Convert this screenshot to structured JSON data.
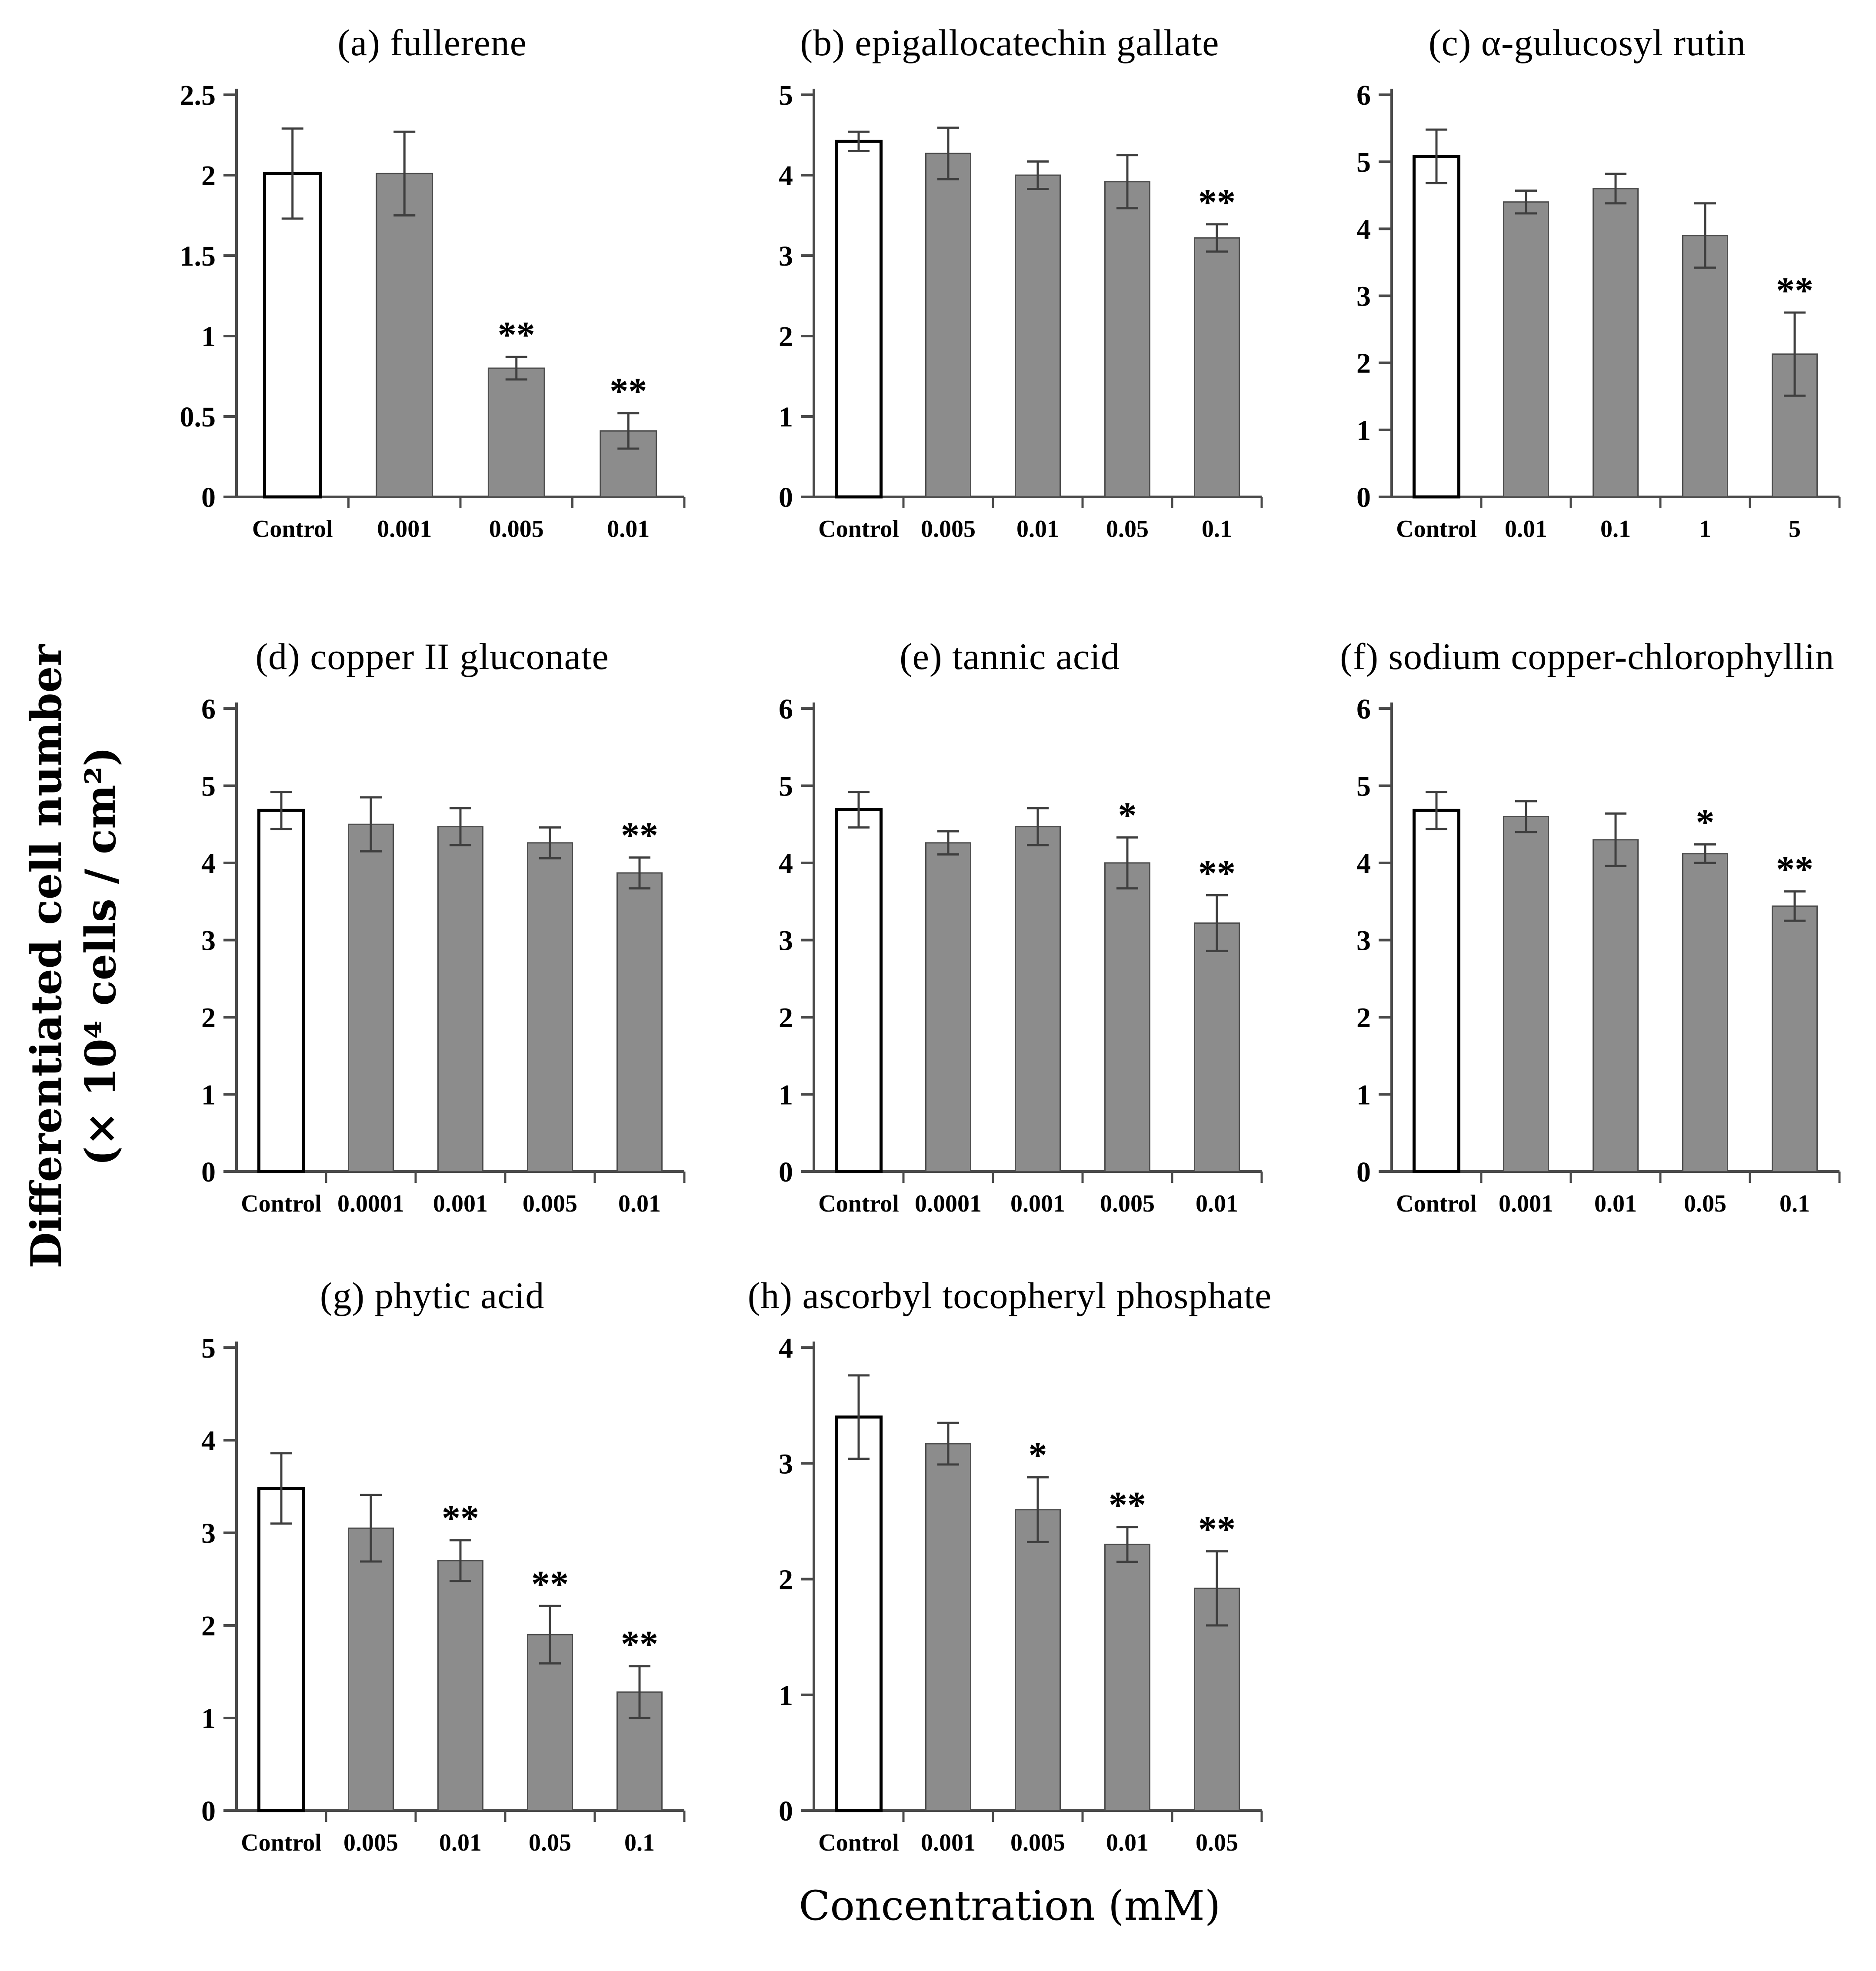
{
  "figure": {
    "ylabel_line1": "Differentiated cell number",
    "ylabel_line2": "(× 10⁴ cells / cm²)",
    "xlabel": "Concentration (mM)"
  },
  "colors": {
    "bar_fill": "#8c8c8c",
    "bar_stroke": "#4d4d4d",
    "control_fill": "#ffffff",
    "control_stroke": "#000000",
    "axis": "#4a4a4a",
    "error": "#3f3f3f",
    "text": "#000000"
  },
  "chart_data": [
    {
      "id": "a",
      "type": "bar",
      "title": "(a) fullerene",
      "categories": [
        "Control",
        "0.001",
        "0.005",
        "0.01"
      ],
      "values": [
        2.01,
        2.01,
        0.8,
        0.41
      ],
      "errors": [
        0.28,
        0.26,
        0.07,
        0.11
      ],
      "sig": [
        "",
        "",
        "**",
        "**"
      ],
      "control_index": 0,
      "ylim": [
        0,
        2.5
      ],
      "yticks": [
        0,
        0.5,
        1,
        1.5,
        2,
        2.5
      ]
    },
    {
      "id": "b",
      "type": "bar",
      "title": "(b) epigallocatechin gallate",
      "categories": [
        "Control",
        "0.005",
        "0.01",
        "0.05",
        "0.1"
      ],
      "values": [
        4.42,
        4.27,
        4.0,
        3.92,
        3.22
      ],
      "errors": [
        0.12,
        0.32,
        0.17,
        0.33,
        0.17
      ],
      "sig": [
        "",
        "",
        "",
        "",
        "**"
      ],
      "control_index": 0,
      "ylim": [
        0,
        5
      ],
      "yticks": [
        0,
        1,
        2,
        3,
        4,
        5
      ]
    },
    {
      "id": "c",
      "type": "bar",
      "title": "(c) α-gulucosyl rutin",
      "categories": [
        "Control",
        "0.01",
        "0.1",
        "1",
        "5"
      ],
      "values": [
        5.08,
        4.4,
        4.6,
        3.9,
        2.13
      ],
      "errors": [
        0.4,
        0.17,
        0.22,
        0.48,
        0.62
      ],
      "sig": [
        "",
        "",
        "",
        "",
        "**"
      ],
      "control_index": 0,
      "ylim": [
        0,
        6
      ],
      "yticks": [
        0,
        1,
        2,
        3,
        4,
        5,
        6
      ]
    },
    {
      "id": "d",
      "type": "bar",
      "title": "(d) copper II gluconate",
      "categories": [
        "Control",
        "0.0001",
        "0.001",
        "0.005",
        "0.01"
      ],
      "values": [
        4.68,
        4.5,
        4.47,
        4.26,
        3.87
      ],
      "errors": [
        0.24,
        0.35,
        0.24,
        0.2,
        0.2
      ],
      "sig": [
        "",
        "",
        "",
        "",
        "**"
      ],
      "control_index": 0,
      "ylim": [
        0,
        6
      ],
      "yticks": [
        0,
        1,
        2,
        3,
        4,
        5,
        6
      ]
    },
    {
      "id": "e",
      "type": "bar",
      "title": "(e) tannic acid",
      "categories": [
        "Control",
        "0.0001",
        "0.001",
        "0.005",
        "0.01"
      ],
      "values": [
        4.69,
        4.26,
        4.47,
        4.0,
        3.22
      ],
      "errors": [
        0.23,
        0.15,
        0.24,
        0.33,
        0.36
      ],
      "sig": [
        "",
        "",
        "",
        "*",
        "**"
      ],
      "control_index": 0,
      "ylim": [
        0,
        6
      ],
      "yticks": [
        0,
        1,
        2,
        3,
        4,
        5,
        6
      ]
    },
    {
      "id": "f",
      "type": "bar",
      "title": "(f) sodium copper-chlorophyllin",
      "categories": [
        "Control",
        "0.001",
        "0.01",
        "0.05",
        "0.1"
      ],
      "values": [
        4.68,
        4.6,
        4.3,
        4.12,
        3.44
      ],
      "errors": [
        0.24,
        0.2,
        0.34,
        0.12,
        0.19
      ],
      "sig": [
        "",
        "",
        "",
        "*",
        "**"
      ],
      "control_index": 0,
      "ylim": [
        0,
        6
      ],
      "yticks": [
        0,
        1,
        2,
        3,
        4,
        5,
        6
      ]
    },
    {
      "id": "g",
      "type": "bar",
      "title": "(g) phytic acid",
      "categories": [
        "Control",
        "0.005",
        "0.01",
        "0.05",
        "0.1"
      ],
      "values": [
        3.48,
        3.05,
        2.7,
        1.9,
        1.28
      ],
      "errors": [
        0.38,
        0.36,
        0.22,
        0.31,
        0.28
      ],
      "sig": [
        "",
        "",
        "**",
        "**",
        "**"
      ],
      "control_index": 0,
      "ylim": [
        0,
        5
      ],
      "yticks": [
        0,
        1,
        2,
        3,
        4,
        5
      ]
    },
    {
      "id": "h",
      "type": "bar",
      "title": "(h) ascorbyl tocopheryl phosphate",
      "categories": [
        "Control",
        "0.001",
        "0.005",
        "0.01",
        "0.05"
      ],
      "values": [
        3.4,
        3.17,
        2.6,
        2.3,
        1.92
      ],
      "errors": [
        0.36,
        0.18,
        0.28,
        0.15,
        0.32
      ],
      "sig": [
        "",
        "",
        "*",
        "**",
        "**"
      ],
      "control_index": 0,
      "ylim": [
        0,
        4
      ],
      "yticks": [
        0,
        1,
        2,
        3,
        4
      ]
    }
  ]
}
